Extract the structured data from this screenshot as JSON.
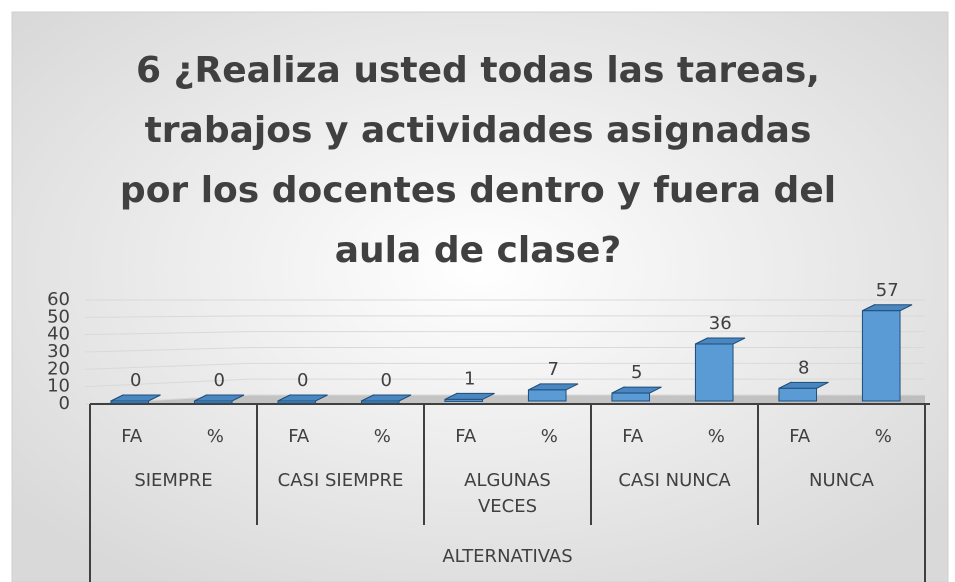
{
  "chart_data": {
    "type": "bar",
    "title": "6 ¿Realiza usted todas las tareas, trabajos y actividades asignadas por los docentes dentro y fuera del aula de clase?",
    "categories": [
      "FA",
      "%",
      "FA",
      "%",
      "FA",
      "%",
      "FA",
      "%",
      "FA",
      "%"
    ],
    "groups": [
      "SIEMPRE",
      "CASI SIEMPRE",
      "ALGUNAS VECES",
      "CASI NUNCA",
      "NUNCA"
    ],
    "x_label": "ALTERNATIVAS",
    "values": [
      0,
      0,
      0,
      0,
      1,
      7,
      5,
      36,
      8,
      57
    ],
    "color": "#5b9bd5",
    "ylim": [
      0,
      60
    ],
    "yticks": [
      0,
      10,
      20,
      30,
      40,
      50,
      60
    ],
    "grid": true
  }
}
